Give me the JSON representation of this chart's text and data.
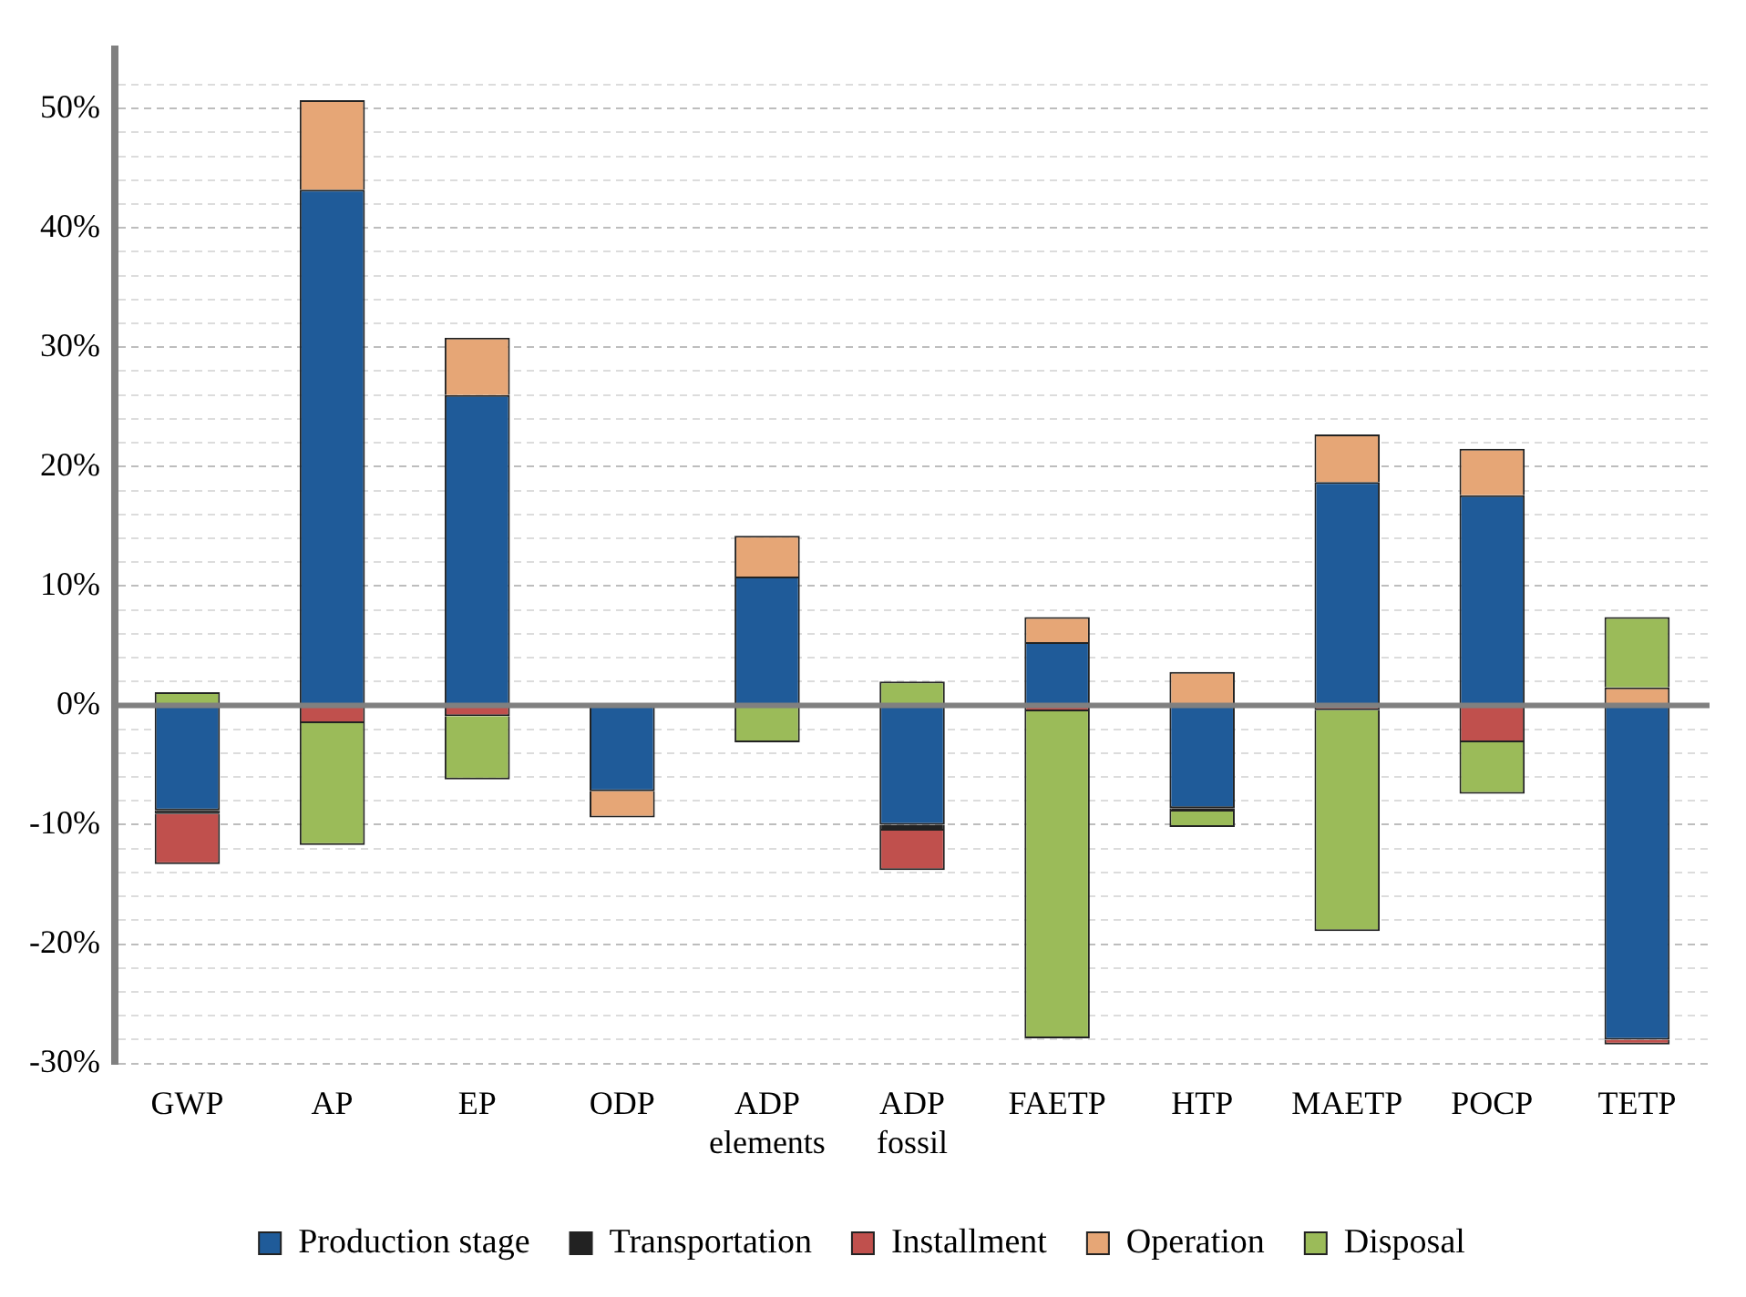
{
  "chart_data": {
    "type": "bar",
    "stacked": true,
    "categories": [
      "GWP",
      "AP",
      "EP",
      "ODP",
      "ADP elements",
      "ADP fossil",
      "FAETP",
      "HTP",
      "MAETP",
      "POCP",
      "TETP"
    ],
    "series": [
      {
        "name": "Production stage",
        "color": "#1f5b99",
        "values": [
          -8.8,
          43.2,
          26.0,
          -7.2,
          10.8,
          -10.0,
          5.3,
          -8.6,
          18.7,
          17.6,
          -28.0
        ]
      },
      {
        "name": "Transportation",
        "color": "#222222",
        "values": [
          -0.3,
          0,
          0,
          0,
          0,
          -0.5,
          0,
          -0.3,
          0,
          0,
          0
        ]
      },
      {
        "name": "Installment",
        "color": "#c0504d",
        "values": [
          -4.2,
          -1.5,
          -0.9,
          0,
          0,
          -3.3,
          -0.5,
          0,
          -0.4,
          -3.1,
          -0.4
        ]
      },
      {
        "name": "Operation",
        "color": "#e6a676",
        "values": [
          0,
          7.5,
          4.8,
          -2.2,
          3.4,
          0,
          2.1,
          2.8,
          4.0,
          3.9,
          1.5
        ]
      },
      {
        "name": "Disposal",
        "color": "#9bbb59",
        "values": [
          1.1,
          -10.2,
          -5.3,
          0,
          -3.1,
          2.0,
          -27.4,
          -1.3,
          -18.5,
          -4.3,
          5.9
        ]
      }
    ],
    "ylim": [
      -30,
      55
    ],
    "yticks": [
      {
        "value": -30,
        "label": "-30%"
      },
      {
        "value": -28,
        "label": null
      },
      {
        "value": -26,
        "label": null
      },
      {
        "value": -24,
        "label": null
      },
      {
        "value": -22,
        "label": null
      },
      {
        "value": -20,
        "label": "-20%"
      },
      {
        "value": -18,
        "label": null
      },
      {
        "value": -16,
        "label": null
      },
      {
        "value": -14,
        "label": null
      },
      {
        "value": -12,
        "label": null
      },
      {
        "value": -10,
        "label": "-10%"
      },
      {
        "value": -8,
        "label": null
      },
      {
        "value": -6,
        "label": null
      },
      {
        "value": -4,
        "label": null
      },
      {
        "value": -2,
        "label": null
      },
      {
        "value": 0,
        "label": "0%"
      },
      {
        "value": 2,
        "label": null
      },
      {
        "value": 4,
        "label": null
      },
      {
        "value": 6,
        "label": null
      },
      {
        "value": 8,
        "label": null
      },
      {
        "value": 10,
        "label": "10%"
      },
      {
        "value": 12,
        "label": null
      },
      {
        "value": 14,
        "label": null
      },
      {
        "value": 16,
        "label": null
      },
      {
        "value": 18,
        "label": null
      },
      {
        "value": 20,
        "label": "20%"
      },
      {
        "value": 22,
        "label": null
      },
      {
        "value": 24,
        "label": null
      },
      {
        "value": 26,
        "label": null
      },
      {
        "value": 28,
        "label": null
      },
      {
        "value": 30,
        "label": "30%"
      },
      {
        "value": 32,
        "label": null
      },
      {
        "value": 34,
        "label": null
      },
      {
        "value": 36,
        "label": null
      },
      {
        "value": 38,
        "label": null
      },
      {
        "value": 40,
        "label": "40%"
      },
      {
        "value": 42,
        "label": null
      },
      {
        "value": 44,
        "label": null
      },
      {
        "value": 46,
        "label": null
      },
      {
        "value": 48,
        "label": null
      },
      {
        "value": 50,
        "label": "50%"
      },
      {
        "value": 52,
        "label": null
      }
    ],
    "ref_lines": [
      {
        "axis": "y",
        "value": 0,
        "color": "#808080"
      }
    ],
    "grid": "y",
    "legend": "bottom"
  }
}
